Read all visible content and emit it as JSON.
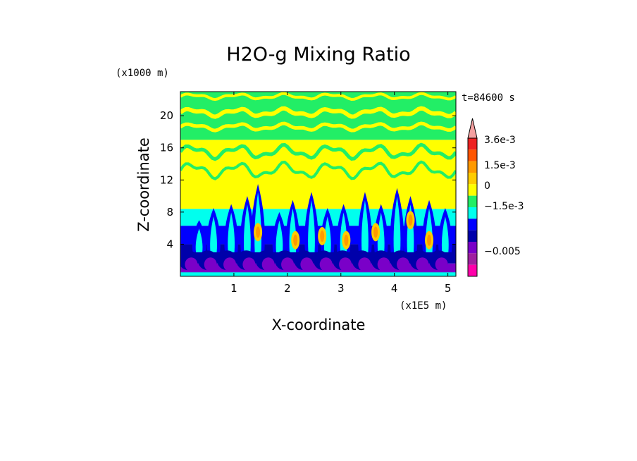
{
  "chart_data": {
    "type": "heatmap",
    "title": "H2O-g Mixing Ratio",
    "xlabel": "X-coordinate",
    "ylabel": "Z-coordinate",
    "x_unit": "(x1E5 m)",
    "y_unit": "(x1000 m)",
    "time_label": "t=84600 s",
    "xlim": [
      0,
      5.15
    ],
    "ylim": [
      0,
      23
    ],
    "x_ticks": [
      1,
      2,
      3,
      4,
      5
    ],
    "y_ticks": [
      4,
      8,
      12,
      16,
      20
    ],
    "grid": false,
    "legend": "colorbar at right",
    "colorbar": {
      "tick_labels": [
        "3.6e-3",
        "1.5e-3",
        "0",
        "−1.5e-3",
        "−0.005"
      ],
      "levels_top_to_bottom": [
        {
          "color": "#f4a0a0"
        },
        {
          "color": "#ee2222"
        },
        {
          "color": "#ff5500"
        },
        {
          "color": "#ff9900"
        },
        {
          "color": "#ffcc00"
        },
        {
          "color": "#ffff00"
        },
        {
          "color": "#22ee66"
        },
        {
          "color": "#00ffee"
        },
        {
          "color": "#0000ff"
        },
        {
          "color": "#0000aa"
        },
        {
          "color": "#7a00c8"
        },
        {
          "color": "#a020a0"
        },
        {
          "color": "#ff00aa"
        }
      ]
    },
    "layers_bottom_to_top": [
      {
        "z_from": 0,
        "z_to": 1.6,
        "color": "#7a00c8"
      },
      {
        "z_from": 1.6,
        "z_to": 4.0,
        "color": "#0000aa"
      },
      {
        "z_from": 4.0,
        "z_to": 6.3,
        "color": "#0000ff"
      },
      {
        "z_from": 6.3,
        "z_to": 8.4,
        "color": "#00ffee"
      },
      {
        "z_from": 8.4,
        "z_to": 17.0,
        "color": "#ffff00"
      },
      {
        "z_from": 17.0,
        "z_to": 23.0,
        "color": "#22ee66"
      }
    ],
    "plumes": [
      {
        "x": 0.35,
        "top": 7.0
      },
      {
        "x": 0.62,
        "top": 8.5
      },
      {
        "x": 0.95,
        "top": 9.0
      },
      {
        "x": 1.25,
        "top": 10.0
      },
      {
        "x": 1.45,
        "top": 11.5
      },
      {
        "x": 1.85,
        "top": 8.0
      },
      {
        "x": 2.1,
        "top": 9.5
      },
      {
        "x": 2.45,
        "top": 10.5
      },
      {
        "x": 2.75,
        "top": 8.5
      },
      {
        "x": 3.05,
        "top": 9.0
      },
      {
        "x": 3.45,
        "top": 10.5
      },
      {
        "x": 3.75,
        "top": 9.0
      },
      {
        "x": 4.05,
        "top": 11.0
      },
      {
        "x": 4.3,
        "top": 10.0
      },
      {
        "x": 4.65,
        "top": 9.5
      },
      {
        "x": 4.95,
        "top": 8.5
      }
    ],
    "warm_cores": [
      {
        "x": 1.45,
        "z": 5.5
      },
      {
        "x": 2.15,
        "z": 4.5
      },
      {
        "x": 2.65,
        "z": 5.0
      },
      {
        "x": 3.1,
        "z": 4.5
      },
      {
        "x": 3.65,
        "z": 5.5
      },
      {
        "x": 4.3,
        "z": 7.0
      },
      {
        "x": 4.65,
        "z": 4.5
      }
    ]
  }
}
